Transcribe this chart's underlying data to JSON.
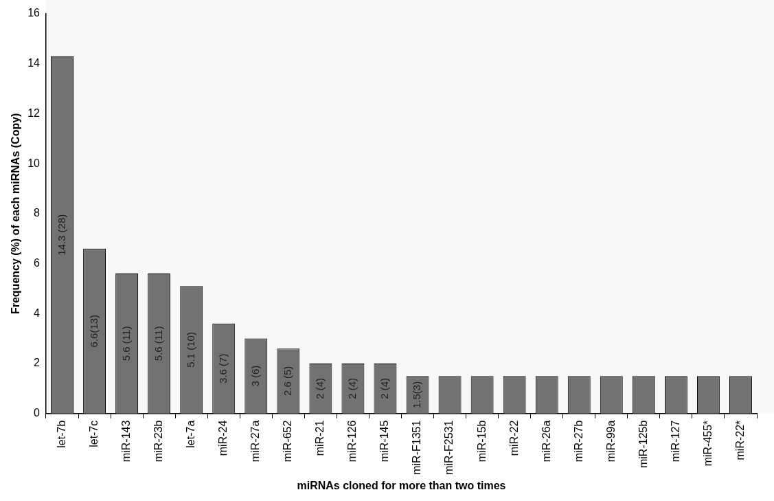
{
  "chart_data": {
    "type": "bar",
    "xlabel": "miRNAs cloned for more than two times",
    "ylabel": "Frequency (%) of each miRNAs (Copy)",
    "categories": [
      "let-7b",
      "let-7c",
      "miR-143",
      "miR-23b",
      "let-7a",
      "miR-24",
      "miR-27a",
      "miR-652",
      "miR-21",
      "miR-126",
      "miR-145",
      "miR-F1351",
      "miR-F2531",
      "miR-15b",
      "miR-22",
      "miR-26a",
      "miR-27b",
      "miR-99a",
      "miR-125b",
      "miR-127",
      "miR-455*",
      "miR-22*"
    ],
    "values": [
      14.3,
      6.6,
      5.6,
      5.6,
      5.1,
      3.6,
      3,
      2.6,
      2,
      2,
      2,
      1.5,
      1.5,
      1.5,
      1.5,
      1.5,
      1.5,
      1.5,
      1.5,
      1.5,
      1.5,
      1.5
    ],
    "value_labels": [
      "14.3 (28)",
      "6.6(13)",
      "5.6 (11)",
      "5.6 (11)",
      "5.1 (10)",
      "3.6 (7)",
      "3 (6)",
      "2.6 (5)",
      "2 (4)",
      "2 (4)",
      "2 (4)",
      "1.5(3)",
      null,
      null,
      null,
      null,
      null,
      null,
      null,
      null,
      null,
      null
    ],
    "color": "#727272",
    "ylim": [
      0,
      16
    ],
    "yticks": [
      0,
      2,
      4,
      6,
      8,
      10,
      12,
      14,
      16
    ],
    "grid": false,
    "legend": false
  }
}
